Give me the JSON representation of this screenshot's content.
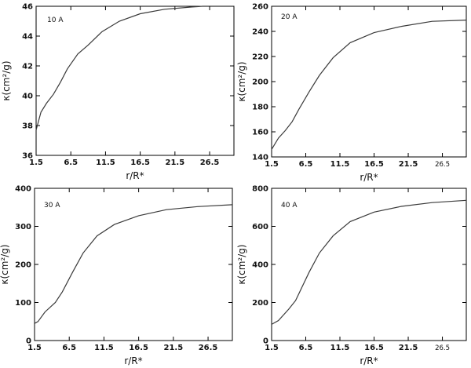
{
  "chart_data": [
    {
      "type": "line",
      "annotation": "10 A",
      "xlabel": "r/R*",
      "ylabel": "κ(cm²/g)",
      "xlim": [
        1.5,
        30.0
      ],
      "ylim": [
        36,
        46
      ],
      "xticks": [
        1.5,
        6.5,
        11.5,
        16.5,
        21.5,
        26.5
      ],
      "xtick_labels": [
        "1.5",
        "6.5",
        "11.5",
        "16.5",
        "21.5",
        "26.5"
      ],
      "yticks": [
        36,
        38,
        40,
        42,
        44,
        46
      ],
      "ytick_labels": [
        "36",
        "38",
        "40",
        "42",
        "44",
        "46"
      ],
      "x": [
        1.5,
        2.2,
        3.0,
        4.0,
        5.0,
        6.0,
        7.5,
        9.0,
        11.0,
        13.5,
        16.5,
        20.0,
        24.0,
        25.5
      ],
      "y": [
        37.7,
        38.9,
        39.5,
        40.1,
        40.9,
        41.8,
        42.8,
        43.4,
        44.3,
        45.0,
        45.5,
        45.8,
        45.95,
        46.0
      ]
    },
    {
      "type": "line",
      "annotation": "20 A",
      "xlabel": "r/R*",
      "ylabel": "κ(cm²/g)",
      "xlim": [
        1.5,
        30.0
      ],
      "ylim": [
        140,
        260
      ],
      "xticks": [
        1.5,
        6.5,
        11.5,
        16.5,
        21.5,
        26.5
      ],
      "xtick_labels": [
        "1.5",
        "6.5",
        "11.5",
        "16.5",
        "21.5",
        "26.5"
      ],
      "yticks": [
        140,
        160,
        180,
        200,
        220,
        240,
        260
      ],
      "ytick_labels": [
        "140",
        "160",
        "180",
        "200",
        "220",
        "240",
        "260"
      ],
      "x": [
        1.5,
        2.5,
        3.5,
        4.5,
        5.5,
        7.0,
        8.5,
        10.5,
        13.0,
        16.5,
        20.5,
        25.0,
        30.0
      ],
      "y": [
        146,
        155,
        161,
        168,
        178,
        192,
        205,
        219,
        231,
        239,
        244,
        248,
        249
      ]
    },
    {
      "type": "line",
      "annotation": "30 A",
      "xlabel": "r/R*",
      "ylabel": "κ(cm²/g)",
      "xlim": [
        1.5,
        30.0
      ],
      "ylim": [
        0,
        400
      ],
      "xticks": [
        1.5,
        6.5,
        11.5,
        16.5,
        21.5,
        26.5
      ],
      "xtick_labels": [
        "1.5",
        "6.5",
        "11.5",
        "16.5",
        "21.5",
        "26.5"
      ],
      "yticks": [
        0,
        100,
        200,
        300,
        400
      ],
      "ytick_labels": [
        "0",
        "100",
        "200",
        "300",
        "400"
      ],
      "x": [
        1.5,
        2.0,
        3.0,
        4.5,
        5.5,
        7.0,
        8.5,
        10.5,
        13.0,
        16.5,
        20.5,
        25.0,
        30.0
      ],
      "y": [
        45,
        50,
        75,
        100,
        128,
        180,
        230,
        275,
        305,
        328,
        344,
        352,
        357
      ]
    },
    {
      "type": "line",
      "annotation": "40 A",
      "xlabel": "r/R*",
      "ylabel": "κ(cm²/g)",
      "xlim": [
        1.5,
        30.0
      ],
      "ylim": [
        0,
        800
      ],
      "xticks": [
        1.5,
        6.5,
        11.5,
        16.5,
        21.5,
        26.5
      ],
      "xtick_labels": [
        "1.5",
        "6.5",
        "11.5",
        "16.5",
        "21.5",
        "26.5"
      ],
      "yticks": [
        0,
        200,
        400,
        600,
        800
      ],
      "ytick_labels": [
        "0",
        "200",
        "400",
        "600",
        "800"
      ],
      "x": [
        1.5,
        2.5,
        4.0,
        5.0,
        6.0,
        7.0,
        8.5,
        10.5,
        13.0,
        16.5,
        20.5,
        25.0,
        30.0
      ],
      "y": [
        85,
        105,
        165,
        210,
        285,
        360,
        460,
        550,
        625,
        675,
        705,
        725,
        737
      ]
    }
  ]
}
